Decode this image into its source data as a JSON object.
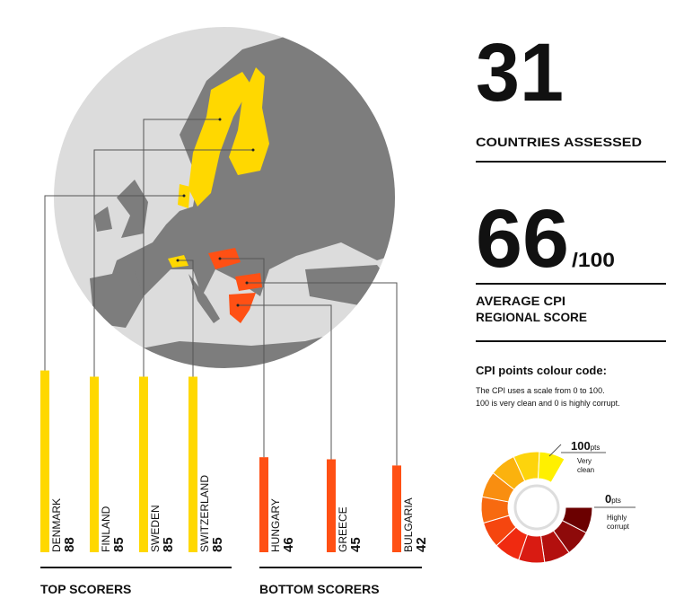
{
  "chart_data": [
    {
      "type": "bar",
      "title": "TOP SCORERS",
      "categories": [
        "DENMARK",
        "FINLAND",
        "SWEDEN",
        "SWITZERLAND"
      ],
      "values": [
        88,
        85,
        85,
        85
      ],
      "color": "#ffd800"
    },
    {
      "type": "bar",
      "title": "BOTTOM SCORERS",
      "categories": [
        "HUNGARY",
        "GREECE",
        "BULGARIA"
      ],
      "values": [
        46,
        45,
        42
      ],
      "color": "#ff5014"
    }
  ],
  "countries": {
    "number": "31",
    "label": "COUNTRIES  ASSESSED",
    "color": "#3a9ad9"
  },
  "average": {
    "number": "66",
    "suffix": "/100",
    "label_lines": [
      "AVERAGE CPI",
      "REGIONAL SCORE"
    ],
    "color": "#f7941d"
  },
  "colour_code": {
    "title": "CPI points colour code:",
    "description": [
      "The CPI uses a scale from 0 to 100.",
      "100 is very clean and 0 is highly corrupt."
    ],
    "high": {
      "points": "100",
      "unit": "pts",
      "lines": [
        "Very",
        "clean"
      ]
    },
    "low": {
      "points": "0",
      "unit": "pts",
      "lines": [
        "Highly",
        "corrupt"
      ]
    }
  }
}
